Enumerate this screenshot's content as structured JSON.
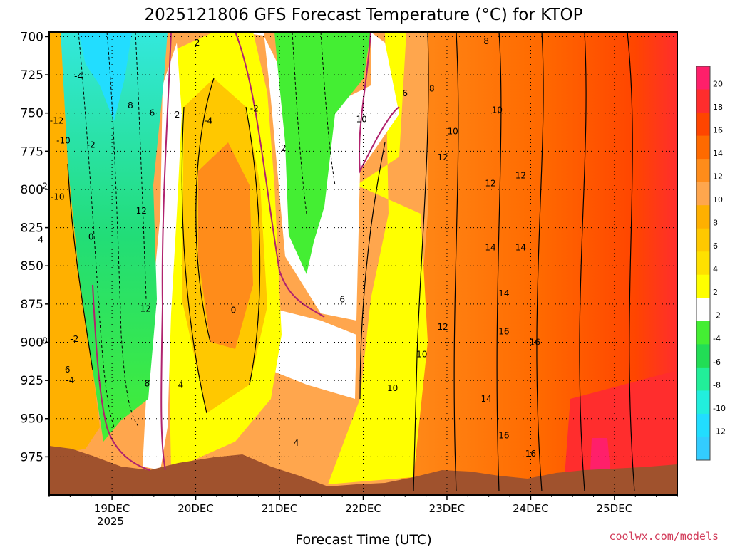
{
  "chart_data": {
    "type": "heatmap",
    "title": "2025121806 GFS Forecast Temperature (°C) for KTOP",
    "xlabel": "Forecast Time (UTC)",
    "ylabel": "",
    "credit": "coolwx.com/models",
    "y_axis": {
      "ticks": [
        700,
        725,
        750,
        775,
        800,
        825,
        850,
        875,
        900,
        925,
        950,
        975
      ],
      "range": [
        697,
        1000
      ],
      "inverted": true,
      "units": "hPa"
    },
    "x_axis": {
      "ticks": [
        "19DEC",
        "20DEC",
        "21DEC",
        "22DEC",
        "23DEC",
        "24DEC",
        "25DEC"
      ],
      "year_label": "2025",
      "range": [
        "18DEC 06Z",
        "25DEC 18Z"
      ]
    },
    "grid": true,
    "colorbar": {
      "levels": [
        20,
        18,
        16,
        14,
        12,
        10,
        8,
        6,
        4,
        2,
        -2,
        -4,
        -6,
        -8,
        -10,
        -12
      ],
      "colors": [
        "#ff1f6a",
        "#ff2d2d",
        "#ff4500",
        "#ff6a00",
        "#ff8c1a",
        "#ffa64d",
        "#ffb000",
        "#ffc800",
        "#ffe000",
        "#ffff00",
        "#ffffff",
        "#44ee33",
        "#22dd55",
        "#22ee99",
        "#22eedd",
        "#22ddff",
        "#33ccff"
      ]
    },
    "contour_labels": [
      {
        "t": 0.42,
        "p": 768,
        "text": "-10"
      },
      {
        "t": 0.34,
        "p": 755,
        "text": "-12"
      },
      {
        "t": 0.6,
        "p": 726,
        "text": "-4"
      },
      {
        "t": 0.75,
        "p": 771,
        "text": "-2"
      },
      {
        "t": 0.2,
        "p": 798,
        "text": "2"
      },
      {
        "t": 0.35,
        "p": 805,
        "text": "-10"
      },
      {
        "t": 0.15,
        "p": 833,
        "text": "4"
      },
      {
        "t": 0.75,
        "p": 831,
        "text": "0"
      },
      {
        "t": 0.55,
        "p": 898,
        "text": "-2"
      },
      {
        "t": 0.45,
        "p": 918,
        "text": "-6"
      },
      {
        "t": 0.5,
        "p": 925,
        "text": "-4"
      },
      {
        "t": 0.2,
        "p": 899,
        "text": "8"
      },
      {
        "t": 1.22,
        "p": 745,
        "text": "8"
      },
      {
        "t": 1.48,
        "p": 750,
        "text": "6"
      },
      {
        "t": 1.78,
        "p": 751,
        "text": "2"
      },
      {
        "t": 1.35,
        "p": 814,
        "text": "12"
      },
      {
        "t": 1.4,
        "p": 878,
        "text": "12"
      },
      {
        "t": 1.42,
        "p": 927,
        "text": "8"
      },
      {
        "t": 1.82,
        "p": 928,
        "text": "4"
      },
      {
        "t": 2.0,
        "p": 704,
        "text": "-2"
      },
      {
        "t": 2.15,
        "p": 755,
        "text": "-4"
      },
      {
        "t": 2.7,
        "p": 747,
        "text": "-2"
      },
      {
        "t": 3.05,
        "p": 773,
        "text": "2"
      },
      {
        "t": 2.45,
        "p": 879,
        "text": "0"
      },
      {
        "t": 3.75,
        "p": 872,
        "text": "6"
      },
      {
        "t": 3.2,
        "p": 966,
        "text": "4"
      },
      {
        "t": 3.98,
        "p": 754,
        "text": "10"
      },
      {
        "t": 4.5,
        "p": 737,
        "text": "6"
      },
      {
        "t": 4.82,
        "p": 734,
        "text": "8"
      },
      {
        "t": 5.07,
        "p": 762,
        "text": "10"
      },
      {
        "t": 5.47,
        "p": 703,
        "text": "8"
      },
      {
        "t": 5.6,
        "p": 748,
        "text": "10"
      },
      {
        "t": 4.95,
        "p": 779,
        "text": "12"
      },
      {
        "t": 5.52,
        "p": 796,
        "text": "12"
      },
      {
        "t": 5.88,
        "p": 791,
        "text": "12"
      },
      {
        "t": 5.52,
        "p": 838,
        "text": "14"
      },
      {
        "t": 5.88,
        "p": 838,
        "text": "14"
      },
      {
        "t": 5.68,
        "p": 868,
        "text": "14"
      },
      {
        "t": 4.95,
        "p": 890,
        "text": "12"
      },
      {
        "t": 4.7,
        "p": 908,
        "text": "10"
      },
      {
        "t": 5.68,
        "p": 893,
        "text": "16"
      },
      {
        "t": 6.05,
        "p": 900,
        "text": "16"
      },
      {
        "t": 4.35,
        "p": 930,
        "text": "10"
      },
      {
        "t": 5.47,
        "p": 937,
        "text": "14"
      },
      {
        "t": 5.68,
        "p": 961,
        "text": "16"
      },
      {
        "t": 6.0,
        "p": 973,
        "text": "16"
      }
    ]
  }
}
